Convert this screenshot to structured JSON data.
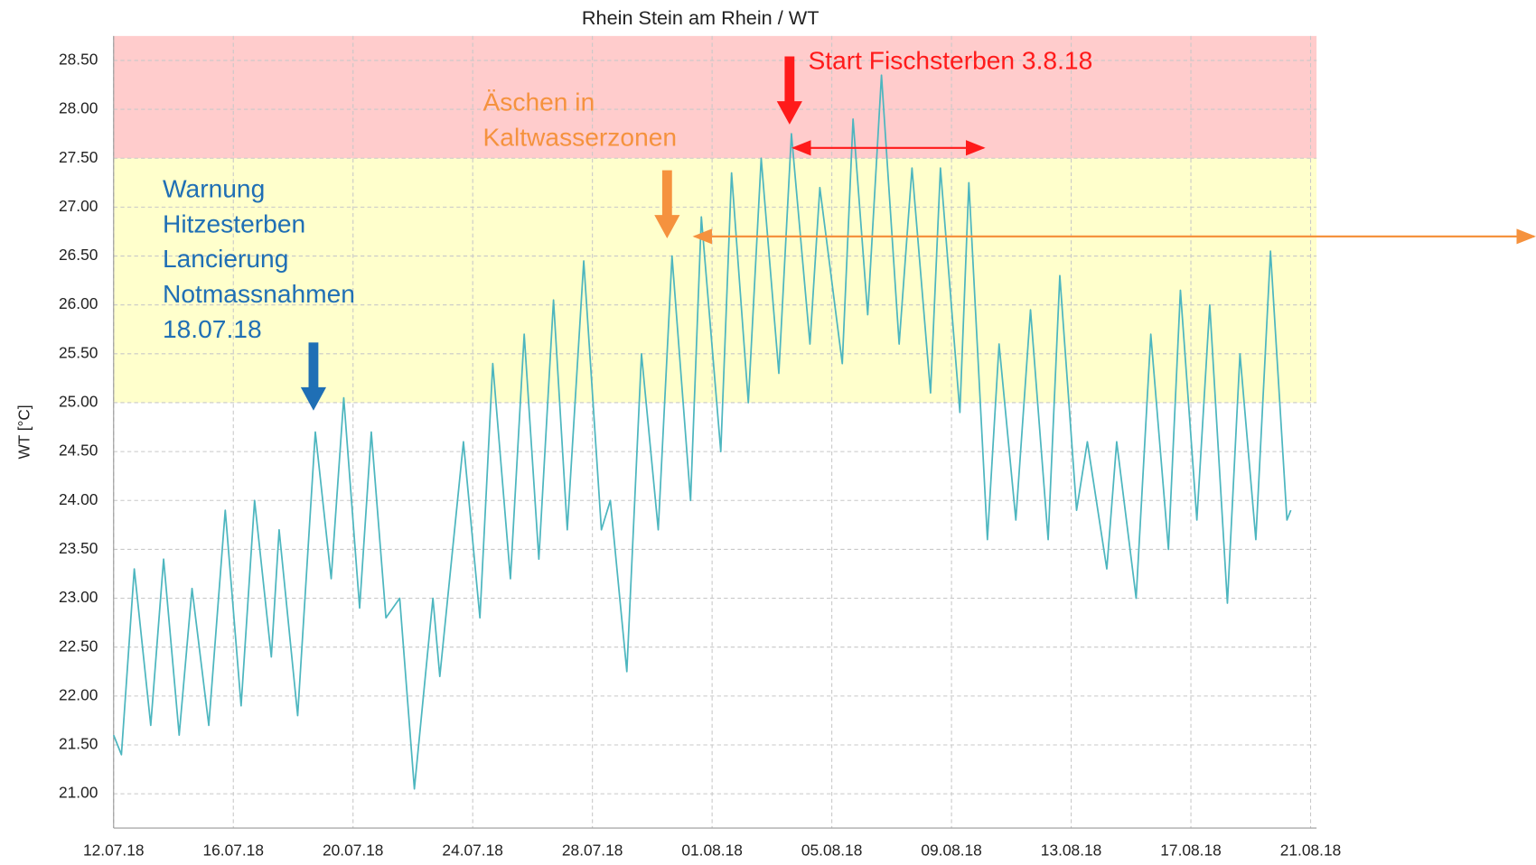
{
  "chart_data": {
    "type": "line",
    "title": "Rhein Stein am Rhein / WT",
    "ylabel": "WT [°C]",
    "xlim": [
      0,
      40.2
    ],
    "ylim": [
      20.65,
      28.75
    ],
    "xticks": [
      {
        "value": 0,
        "label": "12.07.18"
      },
      {
        "value": 4,
        "label": "16.07.18"
      },
      {
        "value": 8,
        "label": "20.07.18"
      },
      {
        "value": 12,
        "label": "24.07.18"
      },
      {
        "value": 16,
        "label": "28.07.18"
      },
      {
        "value": 20,
        "label": "01.08.18"
      },
      {
        "value": 24,
        "label": "05.08.18"
      },
      {
        "value": 28,
        "label": "09.08.18"
      },
      {
        "value": 32,
        "label": "13.08.18"
      },
      {
        "value": 36,
        "label": "17.08.18"
      },
      {
        "value": 40,
        "label": "21.08.18"
      }
    ],
    "yticks": [
      {
        "value": 21,
        "label": "21.00"
      },
      {
        "value": 21.5,
        "label": "21.50"
      },
      {
        "value": 22,
        "label": "22.00"
      },
      {
        "value": 22.5,
        "label": "22.50"
      },
      {
        "value": 23,
        "label": "23.00"
      },
      {
        "value": 23.5,
        "label": "23.50"
      },
      {
        "value": 24,
        "label": "24.00"
      },
      {
        "value": 24.5,
        "label": "24.50"
      },
      {
        "value": 25,
        "label": "25.00"
      },
      {
        "value": 25.5,
        "label": "25.50"
      },
      {
        "value": 26,
        "label": "26.00"
      },
      {
        "value": 26.5,
        "label": "26.50"
      },
      {
        "value": 27,
        "label": "27.00"
      },
      {
        "value": 27.5,
        "label": "27.50"
      },
      {
        "value": 28,
        "label": "28.00"
      },
      {
        "value": 28.5,
        "label": "28.50"
      }
    ],
    "grid": true,
    "bands": [
      {
        "from": 25,
        "to": 27.5,
        "color": "#ffffcc"
      },
      {
        "from": 27.5,
        "to": 28.75,
        "color": "#ffcccc"
      }
    ],
    "series": [
      {
        "name": "WT",
        "color": "#4db6bf",
        "x": [
          0,
          0.26,
          0.69,
          1.24,
          1.67,
          2.19,
          2.62,
          3.18,
          3.73,
          4.26,
          4.71,
          5.27,
          5.53,
          6.15,
          6.74,
          7.27,
          7.69,
          8.22,
          8.61,
          9.1,
          9.56,
          10.05,
          10.67,
          10.9,
          11.69,
          12.24,
          12.67,
          13.26,
          13.72,
          14.21,
          14.7,
          15.16,
          15.71,
          16.3,
          16.6,
          17.15,
          17.64,
          18.2,
          18.66,
          19.28,
          19.64,
          20.29,
          20.65,
          21.21,
          21.64,
          22.23,
          22.65,
          23.27,
          23.6,
          24.35,
          24.71,
          25.2,
          25.66,
          26.25,
          26.68,
          27.3,
          27.63,
          28.28,
          28.58,
          29.2,
          29.59,
          30.15,
          30.64,
          31.23,
          31.62,
          32.18,
          32.54,
          33.19,
          33.52,
          34.17,
          34.66,
          35.25,
          35.65,
          36.2,
          36.63,
          37.22,
          37.64,
          38.17,
          38.66,
          39.21,
          39.34
        ],
        "values": [
          21.6,
          21.4,
          23.3,
          21.7,
          23.4,
          21.6,
          23.1,
          21.7,
          23.9,
          21.9,
          24.0,
          22.4,
          23.7,
          21.8,
          24.7,
          23.2,
          25.05,
          22.9,
          24.7,
          22.8,
          23.0,
          21.05,
          23.0,
          22.2,
          24.6,
          22.8,
          25.4,
          23.2,
          25.7,
          23.4,
          26.05,
          23.7,
          26.45,
          23.7,
          24.0,
          22.25,
          25.5,
          23.7,
          26.5,
          24.0,
          26.9,
          24.5,
          27.35,
          25.0,
          27.5,
          25.3,
          27.75,
          25.6,
          27.2,
          25.4,
          27.9,
          25.9,
          28.35,
          25.6,
          27.4,
          25.1,
          27.4,
          24.9,
          27.25,
          23.6,
          25.6,
          23.8,
          25.95,
          23.6,
          26.3,
          23.9,
          24.6,
          23.3,
          24.6,
          23.0,
          25.7,
          23.5,
          26.15,
          23.8,
          26.0,
          22.95,
          25.5,
          23.6,
          26.55,
          23.8,
          23.9
        ]
      }
    ],
    "annotations": [
      {
        "lines": [
          "Warnung",
          "Hitzesterben",
          "Lancierung",
          "Notmassnahmen",
          "18.07.18"
        ],
        "color": "#1f6fb5"
      },
      {
        "lines": [
          "Äschen in",
          "Kaltwasserzonen"
        ],
        "color": "#f5923e"
      },
      {
        "lines": [
          "Start Fischsterben 3.8.18"
        ],
        "color": "#ff1a1a"
      }
    ]
  }
}
